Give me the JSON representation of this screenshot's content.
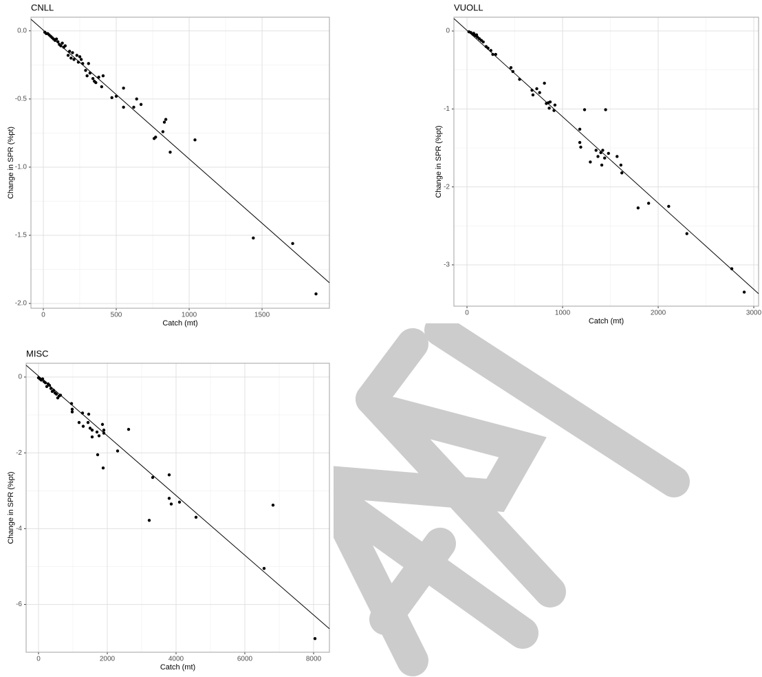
{
  "chart_data": [
    {
      "type": "scatter",
      "title": "CNLL",
      "x_label": "Catch (mt)",
      "y_label": "Change in SPR (%pt)",
      "xlim": [
        -85,
        1962
      ],
      "ylim": [
        -2.035,
        0.1
      ],
      "xticks": [
        0,
        500,
        1000,
        1500
      ],
      "yticks": [
        {
          "value": 0,
          "label": "0.0"
        },
        -0.5,
        {
          "value": -1,
          "label": "-1.0"
        },
        -1.5,
        {
          "value": -2,
          "label": "-2.0"
        }
      ],
      "grid": true,
      "color": "#000000",
      "x": [
        10,
        20,
        30,
        40,
        50,
        60,
        70,
        80,
        90,
        100,
        110,
        120,
        130,
        140,
        150,
        170,
        180,
        190,
        200,
        210,
        230,
        240,
        250,
        260,
        270,
        290,
        300,
        310,
        320,
        340,
        350,
        360,
        380,
        400,
        410,
        470,
        500,
        550,
        550,
        620,
        640,
        670,
        760,
        770,
        820,
        830,
        840,
        870,
        1040,
        1440,
        1710,
        1870
      ],
      "values": [
        -0.01,
        -0.02,
        -0.02,
        -0.03,
        -0.04,
        -0.05,
        -0.06,
        -0.07,
        -0.06,
        -0.08,
        -0.1,
        -0.11,
        -0.09,
        -0.12,
        -0.11,
        -0.18,
        -0.15,
        -0.2,
        -0.16,
        -0.21,
        -0.18,
        -0.23,
        -0.19,
        -0.21,
        -0.24,
        -0.29,
        -0.33,
        -0.24,
        -0.31,
        -0.35,
        -0.37,
        -0.38,
        -0.34,
        -0.41,
        -0.33,
        -0.49,
        -0.48,
        -0.56,
        -0.42,
        -0.56,
        -0.5,
        -0.54,
        -0.79,
        -0.78,
        -0.74,
        -0.67,
        -0.65,
        -0.89,
        -0.8,
        -1.52,
        -1.56,
        -1.93
      ],
      "trend_line": {
        "x": [
          -85,
          1962
        ],
        "y": [
          0.085,
          -1.848
        ]
      }
    },
    {
      "type": "scatter",
      "title": "VUOLL",
      "x_label": "Catch (mt)",
      "y_label": "Change in SPR (%pt)",
      "xlim": [
        -137,
        3050
      ],
      "ylim": [
        -3.53,
        0.177
      ],
      "xticks": [
        0,
        1000,
        2000,
        3000
      ],
      "yticks": [
        0,
        -1,
        -2,
        -3
      ],
      "grid": true,
      "color": "#000000",
      "x": [
        20,
        40,
        60,
        70,
        80,
        90,
        100,
        110,
        130,
        150,
        170,
        200,
        220,
        250,
        270,
        300,
        460,
        480,
        550,
        680,
        690,
        730,
        760,
        810,
        830,
        850,
        860,
        870,
        910,
        920,
        1180,
        1180,
        1190,
        1230,
        1290,
        1350,
        1370,
        1400,
        1410,
        1420,
        1440,
        1450,
        1480,
        1570,
        1610,
        1620,
        1790,
        1900,
        2110,
        2300,
        2770,
        2900
      ],
      "values": [
        -0.01,
        -0.02,
        -0.04,
        -0.03,
        -0.05,
        -0.06,
        -0.05,
        -0.08,
        -0.1,
        -0.12,
        -0.14,
        -0.2,
        -0.22,
        -0.25,
        -0.3,
        -0.3,
        -0.47,
        -0.52,
        -0.62,
        -0.76,
        -0.82,
        -0.74,
        -0.79,
        -0.67,
        -0.93,
        -0.92,
        -0.99,
        -0.91,
        -1.02,
        -0.95,
        -1.26,
        -1.43,
        -1.49,
        -1.01,
        -1.68,
        -1.53,
        -1.61,
        -1.56,
        -1.72,
        -1.53,
        -1.63,
        -1.01,
        -1.57,
        -1.61,
        -1.72,
        -1.82,
        -2.27,
        -2.21,
        -2.25,
        -2.6,
        -3.05,
        -3.35
      ],
      "trend_line": {
        "x": [
          -137,
          3050
        ],
        "y": [
          0.159,
          -3.37
        ]
      }
    },
    {
      "type": "scatter",
      "title": "MISC",
      "x_label": "Catch (mt)",
      "y_label": "Change in SPR (%pt)",
      "xlim": [
        -360,
        8460
      ],
      "ylim": [
        -7.26,
        0.363
      ],
      "xticks": [
        0,
        2000,
        4000,
        6000,
        8000
      ],
      "yticks": [
        0,
        -2,
        -4,
        -6
      ],
      "grid": true,
      "color": "#000000",
      "x": [
        0,
        40,
        80,
        120,
        160,
        200,
        240,
        280,
        320,
        360,
        400,
        440,
        480,
        520,
        560,
        600,
        640,
        960,
        980,
        980,
        1180,
        1280,
        1300,
        1440,
        1460,
        1500,
        1560,
        1560,
        1700,
        1720,
        1760,
        1860,
        1880,
        1900,
        1900,
        2300,
        2620,
        3220,
        3320,
        3800,
        3800,
        3860,
        4100,
        4580,
        6560,
        6820,
        8040
      ],
      "values": [
        -0.02,
        -0.05,
        -0.08,
        -0.05,
        -0.12,
        -0.15,
        -0.25,
        -0.18,
        -0.22,
        -0.3,
        -0.38,
        -0.35,
        -0.42,
        -0.45,
        -0.55,
        -0.5,
        -0.48,
        -0.7,
        -0.85,
        -0.92,
        -1.2,
        -0.95,
        -1.3,
        -1.2,
        -0.98,
        -1.35,
        -1.4,
        -1.58,
        -1.45,
        -2.05,
        -1.55,
        -1.25,
        -2.4,
        -1.4,
        -1.48,
        -1.95,
        -1.38,
        -3.78,
        -2.65,
        -2.58,
        -3.2,
        -3.35,
        -3.3,
        -3.7,
        -5.05,
        -3.38,
        -6.9
      ],
      "trend_line": {
        "x": [
          -360,
          8460
        ],
        "y": [
          0.31,
          -6.64
        ]
      }
    }
  ]
}
